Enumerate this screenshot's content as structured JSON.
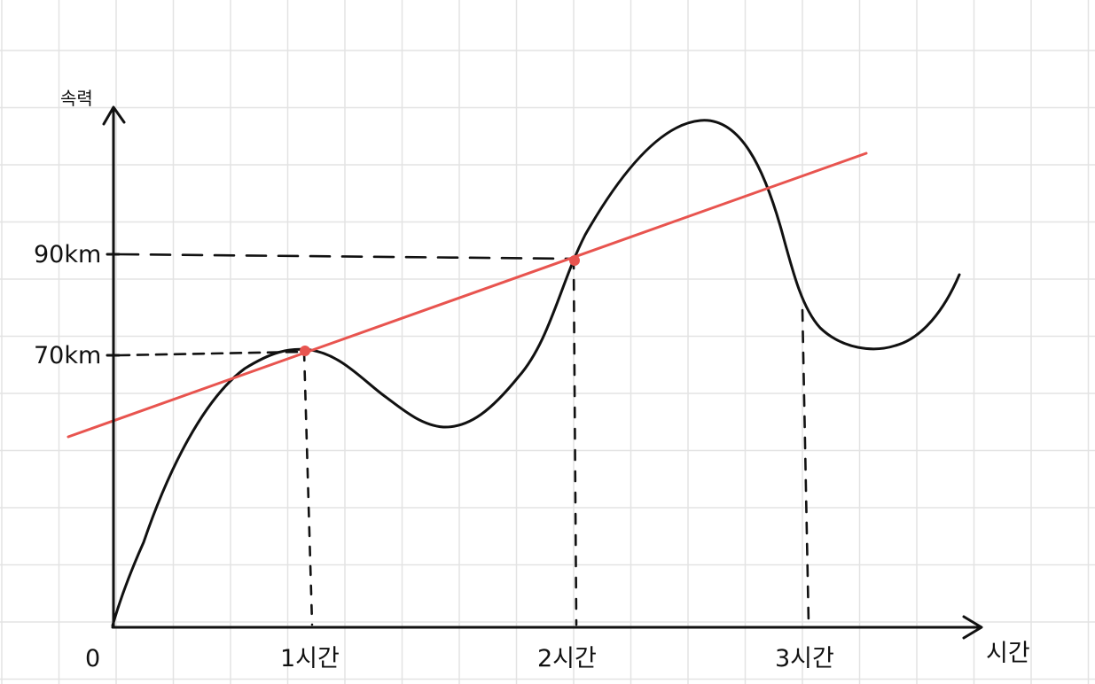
{
  "diagram": {
    "y_axis_label": "속력",
    "x_axis_label": "시간",
    "origin_label": "0",
    "y_ticks": [
      {
        "label": "90km",
        "value": 90
      },
      {
        "label": "70km",
        "value": 70
      }
    ],
    "x_ticks": [
      {
        "label": "1시간",
        "value": 1
      },
      {
        "label": "2시간",
        "value": 2
      },
      {
        "label": "3시간",
        "value": 3
      }
    ],
    "marked_points": [
      {
        "x": 1,
        "y": 70
      },
      {
        "x": 2,
        "y": 90
      }
    ],
    "colors": {
      "curve": "#111111",
      "secant_line": "#e8544f",
      "grid": "#e3e3e3",
      "axes": "#111111"
    }
  }
}
